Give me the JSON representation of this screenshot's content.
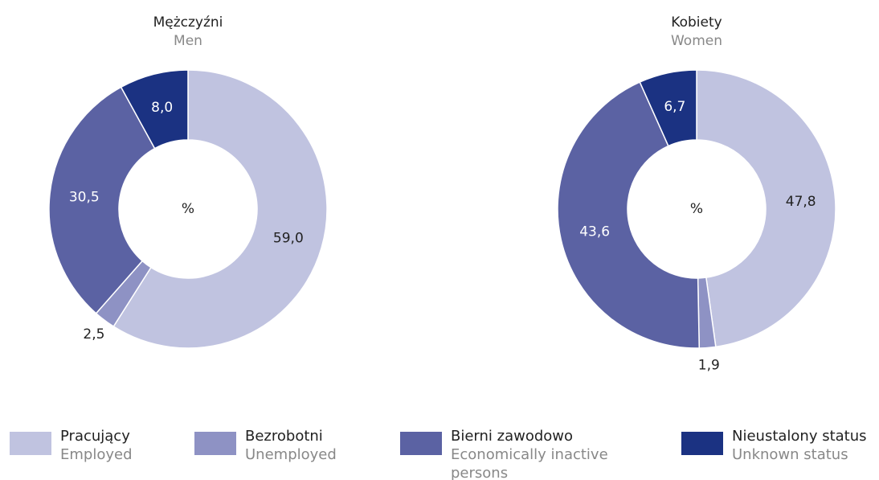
{
  "chart_data": [
    {
      "type": "pie",
      "title": "Mężczyźni",
      "subtitle": "Men",
      "center_label": "%",
      "values": [
        59.0,
        2.5,
        30.5,
        8.0
      ],
      "value_labels": [
        "59,0",
        "2,5",
        "30,5",
        "8,0"
      ]
    },
    {
      "type": "pie",
      "title": "Kobiety",
      "subtitle": "Women",
      "center_label": "%",
      "values": [
        47.8,
        1.9,
        43.6,
        6.7
      ],
      "value_labels": [
        "47,8",
        "1,9",
        "43,6",
        "6,7"
      ]
    }
  ],
  "legend": {
    "labels": [
      "Pracujący",
      "Bezrobotni",
      "Bierni zawodowo",
      "Nieustalony status"
    ],
    "sublabels": [
      "Employed",
      "Unemployed",
      "Economically inactive persons",
      "Unknown status"
    ],
    "colors": [
      "#c0c3e0",
      "#8e92c4",
      "#5b62a3",
      "#1b3282"
    ]
  }
}
